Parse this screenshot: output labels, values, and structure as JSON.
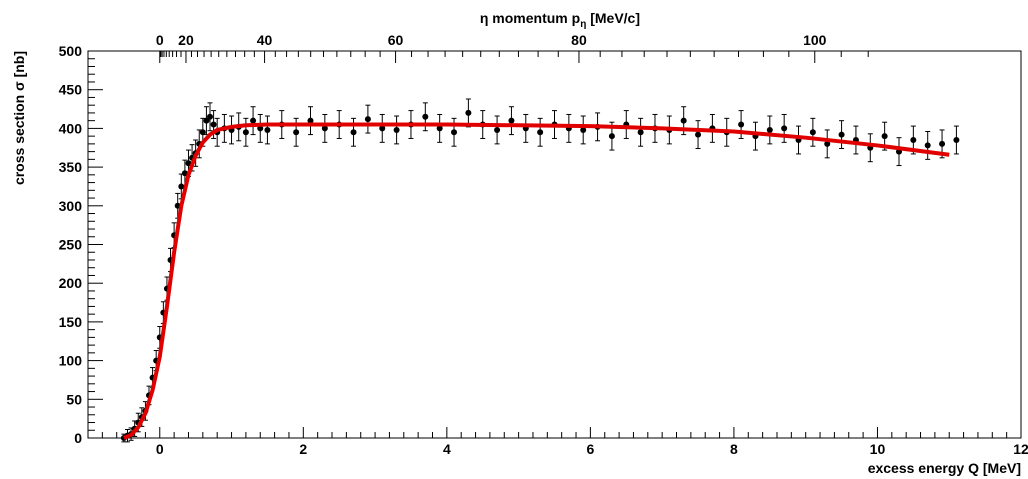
{
  "chart_data": {
    "type": "scatter",
    "xlabel": "excess energy Q [MeV]",
    "ylabel": "cross section σ [nb]",
    "top_axis_label": "η momentum p",
    "top_axis_label_sub": "η",
    "top_axis_label_unit": " [MeV/c]",
    "xlim": [
      -1.0,
      12.0
    ],
    "ylim": [
      0,
      500
    ],
    "x_ticks": [
      {
        "value": 0,
        "label": "0"
      },
      {
        "value": 2,
        "label": "2"
      },
      {
        "value": 4,
        "label": "4"
      },
      {
        "value": 6,
        "label": "6"
      },
      {
        "value": 8,
        "label": "8"
      },
      {
        "value": 10,
        "label": "10"
      },
      {
        "value": 12,
        "label": "12"
      }
    ],
    "y_ticks": [
      {
        "value": 0,
        "label": "0"
      },
      {
        "value": 50,
        "label": "50"
      },
      {
        "value": 100,
        "label": "100"
      },
      {
        "value": 150,
        "label": "150"
      },
      {
        "value": 200,
        "label": "200"
      },
      {
        "value": 250,
        "label": "250"
      },
      {
        "value": 300,
        "label": "300"
      },
      {
        "value": 350,
        "label": "350"
      },
      {
        "value": 400,
        "label": "400"
      },
      {
        "value": 450,
        "label": "450"
      },
      {
        "value": 500,
        "label": "500"
      }
    ],
    "top_ticks": [
      {
        "value": 0,
        "label": "0"
      },
      {
        "value": 20,
        "label": "20"
      },
      {
        "value": 40,
        "label": "40"
      },
      {
        "value": 60,
        "label": "60"
      },
      {
        "value": 80,
        "label": "80"
      },
      {
        "value": 100,
        "label": "100"
      }
    ],
    "grid": false,
    "colors": {
      "data": "#000000",
      "fit": "#e00000"
    },
    "series": [
      {
        "kind": "points_with_errors",
        "x": [
          -0.5,
          -0.45,
          -0.4,
          -0.35,
          -0.3,
          -0.25,
          -0.2,
          -0.15,
          -0.1,
          -0.05,
          0.0,
          0.05,
          0.1,
          0.15,
          0.2,
          0.25,
          0.3,
          0.35,
          0.4,
          0.45,
          0.5,
          0.55,
          0.6,
          0.65,
          0.7,
          0.75,
          0.8,
          0.9,
          1.0,
          1.1,
          1.2,
          1.3,
          1.4,
          1.5,
          1.7,
          1.9,
          2.1,
          2.3,
          2.5,
          2.7,
          2.9,
          3.1,
          3.3,
          3.5,
          3.7,
          3.9,
          4.1,
          4.3,
          4.5,
          4.7,
          4.9,
          5.1,
          5.3,
          5.5,
          5.7,
          5.9,
          6.1,
          6.3,
          6.5,
          6.7,
          6.9,
          7.1,
          7.3,
          7.5,
          7.7,
          7.9,
          8.1,
          8.3,
          8.5,
          8.7,
          8.9,
          9.1,
          9.3,
          9.5,
          9.7,
          9.9,
          10.1,
          10.3,
          10.5,
          10.7,
          10.9,
          11.1
        ],
        "y": [
          0,
          3,
          5,
          12,
          20,
          27,
          35,
          55,
          78,
          100,
          130,
          162,
          193,
          230,
          262,
          300,
          325,
          342,
          355,
          362,
          368,
          380,
          395,
          410,
          415,
          405,
          395,
          400,
          398,
          402,
          395,
          410,
          400,
          398,
          405,
          395,
          410,
          400,
          405,
          395,
          412,
          400,
          398,
          405,
          415,
          400,
          395,
          420,
          405,
          398,
          410,
          400,
          395,
          405,
          400,
          398,
          402,
          390,
          405,
          395,
          400,
          398,
          410,
          392,
          400,
          395,
          405,
          390,
          398,
          400,
          385,
          395,
          380,
          392,
          385,
          375,
          390,
          370,
          385,
          378,
          380,
          385
        ],
        "err": [
          5,
          8,
          8,
          10,
          12,
          12,
          12,
          12,
          13,
          13,
          14,
          14,
          15,
          15,
          16,
          16,
          16,
          17,
          17,
          17,
          17,
          18,
          18,
          18,
          18,
          18,
          18,
          18,
          18,
          18,
          18,
          18,
          18,
          18,
          18,
          18,
          18,
          18,
          18,
          18,
          18,
          18,
          18,
          18,
          18,
          18,
          18,
          18,
          18,
          18,
          18,
          18,
          18,
          18,
          18,
          18,
          18,
          18,
          18,
          18,
          18,
          18,
          18,
          18,
          18,
          18,
          18,
          18,
          18,
          18,
          18,
          18,
          18,
          18,
          18,
          18,
          18,
          18,
          18,
          18,
          18,
          18
        ]
      },
      {
        "kind": "fit_curve",
        "x": [
          -0.5,
          -0.4,
          -0.3,
          -0.2,
          -0.1,
          0.0,
          0.1,
          0.2,
          0.3,
          0.4,
          0.5,
          0.6,
          0.7,
          0.8,
          1.0,
          1.2,
          1.5,
          2.0,
          3.0,
          4.0,
          5.0,
          6.0,
          7.0,
          8.0,
          9.0,
          10.0,
          11.0
        ],
        "y": [
          0,
          4,
          14,
          32,
          62,
          105,
          170,
          240,
          300,
          340,
          365,
          382,
          392,
          398,
          402,
          404,
          405,
          405,
          405,
          405,
          404,
          403,
          400,
          396,
          388,
          378,
          366
        ]
      }
    ]
  }
}
